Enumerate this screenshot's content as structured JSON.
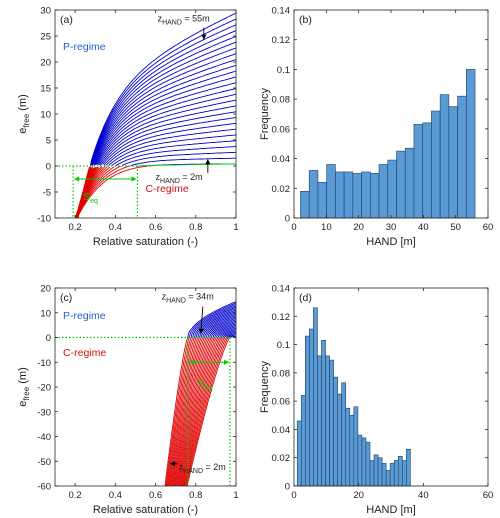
{
  "chart_data": [
    {
      "panel_label": "(a)",
      "type": "line",
      "xlabel": "Relative saturation (-)",
      "ylabel_main": "e",
      "ylabel_sub": "free",
      "ylabel_unit": " (m)",
      "xlim": [
        0.1,
        1.0
      ],
      "ylim": [
        -10,
        30
      ],
      "xticks": [
        0.2,
        0.4,
        0.6,
        0.8,
        1
      ],
      "xtick_labels": [
        "0.2",
        "0.4",
        "0.6",
        "0.8",
        "1"
      ],
      "yticks": [
        -10,
        -5,
        0,
        5,
        10,
        15,
        20,
        25,
        30
      ],
      "ytick_labels": [
        "-10",
        "-5",
        "0",
        "5",
        "10",
        "15",
        "20",
        "25",
        "30"
      ],
      "regime_labels": {
        "p": "P-regime",
        "c": "C-regime",
        "s_main": "S",
        "s_sub": "eq"
      },
      "annotations": {
        "top": {
          "main": "z",
          "sub": "HAND",
          "rest": " = 55m"
        },
        "bottom": {
          "main": "z",
          "sub": "HAND",
          "rest": " = 2m"
        }
      },
      "hand_min_m": 2,
      "hand_max_m": 55,
      "curve_count": 27,
      "curve_colors": {
        "p": "#0000CC",
        "c": "#E00000",
        "guide": "#00CC00",
        "arrow": "#000000"
      },
      "s_eq_range": [
        0.19,
        0.51
      ],
      "equilibrium_line_y": 0,
      "bright_curve_at_s1": 0.4
    },
    {
      "panel_label": "(b)",
      "type": "bar",
      "xlabel": "HAND [m]",
      "ylabel": "Frequency",
      "xlim": [
        0,
        60
      ],
      "ylim": [
        0,
        0.14
      ],
      "xticks": [
        0,
        10,
        20,
        30,
        40,
        50,
        60
      ],
      "xtick_labels": [
        "0",
        "10",
        "20",
        "30",
        "40",
        "50",
        "60"
      ],
      "yticks": [
        0,
        0.02,
        0.04,
        0.06,
        0.08,
        0.1,
        0.12,
        0.14
      ],
      "ytick_labels": [
        "0",
        "0.02",
        "0.04",
        "0.06",
        "0.08",
        "0.1",
        "0.12",
        "0.14"
      ],
      "bin_start": 2,
      "bin_width": 2.7,
      "values": [
        0.018,
        0.032,
        0.024,
        0.036,
        0.031,
        0.031,
        0.03,
        0.031,
        0.03,
        0.036,
        0.039,
        0.045,
        0.047,
        0.063,
        0.064,
        0.072,
        0.083,
        0.075,
        0.082,
        0.1
      ],
      "bar_color": "#5A9BD5",
      "edge_color": "#1F3F66"
    },
    {
      "panel_label": "(c)",
      "type": "line",
      "xlabel": "Relative saturation (-)",
      "ylabel_main": "e",
      "ylabel_sub": "free",
      "ylabel_unit": " (m)",
      "xlim": [
        0.1,
        1.0
      ],
      "ylim": [
        -60,
        20
      ],
      "xticks": [
        0.2,
        0.4,
        0.6,
        0.8,
        1
      ],
      "xtick_labels": [
        "0.2",
        "0.4",
        "0.6",
        "0.8",
        "1"
      ],
      "yticks": [
        -60,
        -50,
        -40,
        -30,
        -20,
        -10,
        0,
        10,
        20
      ],
      "ytick_labels": [
        "-60",
        "-50",
        "-40",
        "-30",
        "-20",
        "-10",
        "0",
        "10",
        "20"
      ],
      "regime_labels": {
        "p": "P-regime",
        "c": "C-regime",
        "s_main": "S",
        "s_sub": "eq"
      },
      "annotations": {
        "top": {
          "main": "z",
          "sub": "HAND",
          "rest": " = 34m"
        },
        "bottom": {
          "main": "z",
          "sub": "HAND",
          "rest": " = 2m"
        }
      },
      "hand_min_m": 2,
      "hand_max_m": 34,
      "curve_count": 26,
      "curve_colors": {
        "p": "#0000CC",
        "c": "#E00000",
        "guide": "#00CC00",
        "arrow": "#000000"
      },
      "s_eq_range": [
        0.76,
        0.97
      ],
      "equilibrium_line_y": 0
    },
    {
      "panel_label": "(d)",
      "type": "bar",
      "xlabel": "HAND [m]",
      "ylabel": "Frequency",
      "xlim": [
        0,
        60
      ],
      "ylim": [
        0,
        0.14
      ],
      "xticks": [
        0,
        20,
        40,
        60
      ],
      "xtick_labels": [
        "0",
        "20",
        "40",
        "60"
      ],
      "yticks": [
        0,
        0.02,
        0.04,
        0.06,
        0.08,
        0.1,
        0.12,
        0.14
      ],
      "ytick_labels": [
        "0",
        "0.02",
        "0.04",
        "0.06",
        "0.08",
        "0.1",
        "0.12",
        "0.14"
      ],
      "bin_start": 1,
      "bin_width": 1.25,
      "values": [
        0.046,
        0.064,
        0.106,
        0.111,
        0.126,
        0.092,
        0.103,
        0.092,
        0.089,
        0.077,
        0.065,
        0.073,
        0.055,
        0.05,
        0.056,
        0.036,
        0.034,
        0.031,
        0.018,
        0.022,
        0.02,
        0.016,
        0.011,
        0.016,
        0.018,
        0.021,
        0.018,
        0.026
      ],
      "bar_color": "#5A9BD5",
      "edge_color": "#1F3F66"
    }
  ]
}
